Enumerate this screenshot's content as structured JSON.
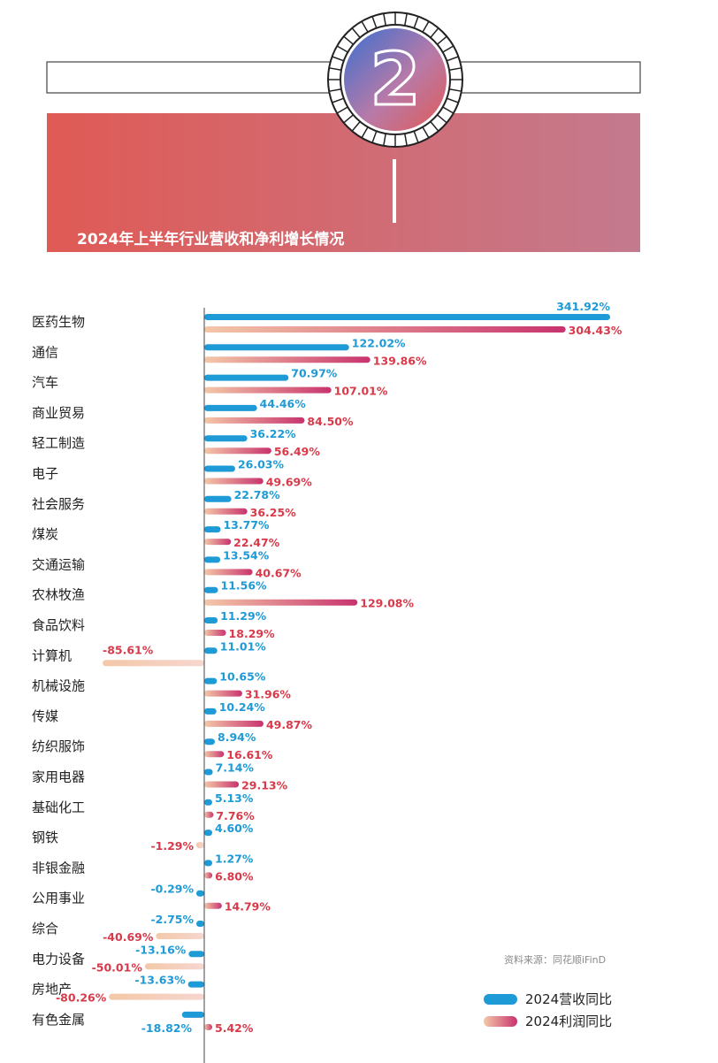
{
  "header": {
    "title": "2024年上半年行业营收和净利增长情况",
    "badge_number": "2"
  },
  "source": "资料来源：同花顺iFinD",
  "colors": {
    "revenue": "#1e9ad6",
    "profit_start": "#f4c8a8",
    "profit_end": "#c8336e",
    "revenue_label": "#1e9ad6",
    "profit_label": "#d83a4a",
    "banner_start": "#e05a55",
    "banner_end": "#c47a8e"
  },
  "chart_data": {
    "type": "bar",
    "orientation": "horizontal",
    "value_format": "percent",
    "categories": [
      "医药生物",
      "通信",
      "汽车",
      "商业贸易",
      "轻工制造",
      "电子",
      "社会服务",
      "煤炭",
      "交通运输",
      "农林牧渔",
      "食品饮料",
      "计算机",
      "机械设施",
      "传媒",
      "纺织服饰",
      "家用电器",
      "基础化工",
      "钢铁",
      "非银金融",
      "公用事业",
      "综合",
      "电力设备",
      "房地产",
      "有色金属"
    ],
    "series": [
      {
        "name": "2024营收同比",
        "values": [
          341.92,
          122.02,
          70.97,
          44.46,
          36.22,
          26.03,
          22.78,
          13.77,
          13.54,
          11.56,
          11.29,
          11.01,
          10.65,
          10.24,
          8.94,
          7.14,
          5.13,
          4.6,
          1.27,
          -0.29,
          -2.75,
          -13.16,
          -13.63,
          -18.82
        ]
      },
      {
        "name": "2024利润同比",
        "values": [
          304.43,
          139.86,
          107.01,
          84.5,
          56.49,
          49.69,
          36.25,
          22.47,
          40.67,
          129.08,
          18.29,
          -85.61,
          31.96,
          49.87,
          16.61,
          29.13,
          7.76,
          -1.29,
          6.8,
          14.79,
          -40.69,
          -50.01,
          -80.26,
          5.42
        ]
      }
    ],
    "legend_position": "bottom-right"
  }
}
